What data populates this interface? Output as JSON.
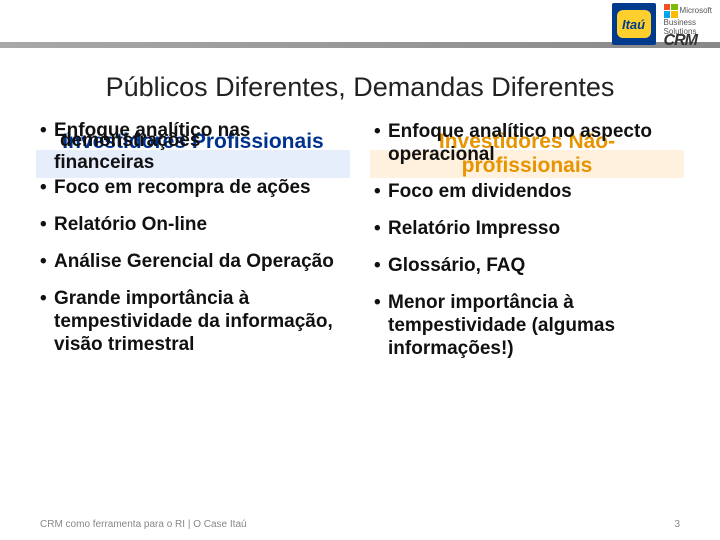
{
  "branding": {
    "itau_label": "Itaú",
    "ms_line1": "Microsoft",
    "ms_line2": "Business",
    "ms_line3": "Solutions",
    "crm_label": "CRM"
  },
  "title": "Públicos Diferentes, Demandas Diferentes",
  "colors": {
    "left_header_text": "#00338f",
    "left_header_bg": "#e6eefc",
    "right_header_text": "#e69400",
    "right_header_bg": "#fff1de",
    "topbar_stripe": "#a0a0a0"
  },
  "left": {
    "header": "Investidores Profissionais",
    "bullets": [
      {
        "text_a": "Enfoque analítico nas",
        "text_b": "demonstrações",
        "text_c": "financeiras"
      },
      {
        "text": "Foco em recompra de ações"
      },
      {
        "text": "Relatório On-line"
      },
      {
        "text": "Análise Gerencial da Operação"
      },
      {
        "text": "Grande importância à tempestividade da informação, visão trimestral"
      }
    ]
  },
  "right": {
    "header_line1": "Investidores Não-",
    "header_line2": "profissionais",
    "bullets": [
      {
        "text": "Enfoque analítico no aspecto operacional"
      },
      {
        "text": "Foco em dividendos"
      },
      {
        "text": "Relatório Impresso"
      },
      {
        "text": "Glossário, FAQ"
      },
      {
        "text": "Menor importância à tempestividade (algumas informações!)"
      }
    ]
  },
  "footer": {
    "left": "CRM como ferramenta para o RI | O Case Itaú",
    "page": "3"
  }
}
